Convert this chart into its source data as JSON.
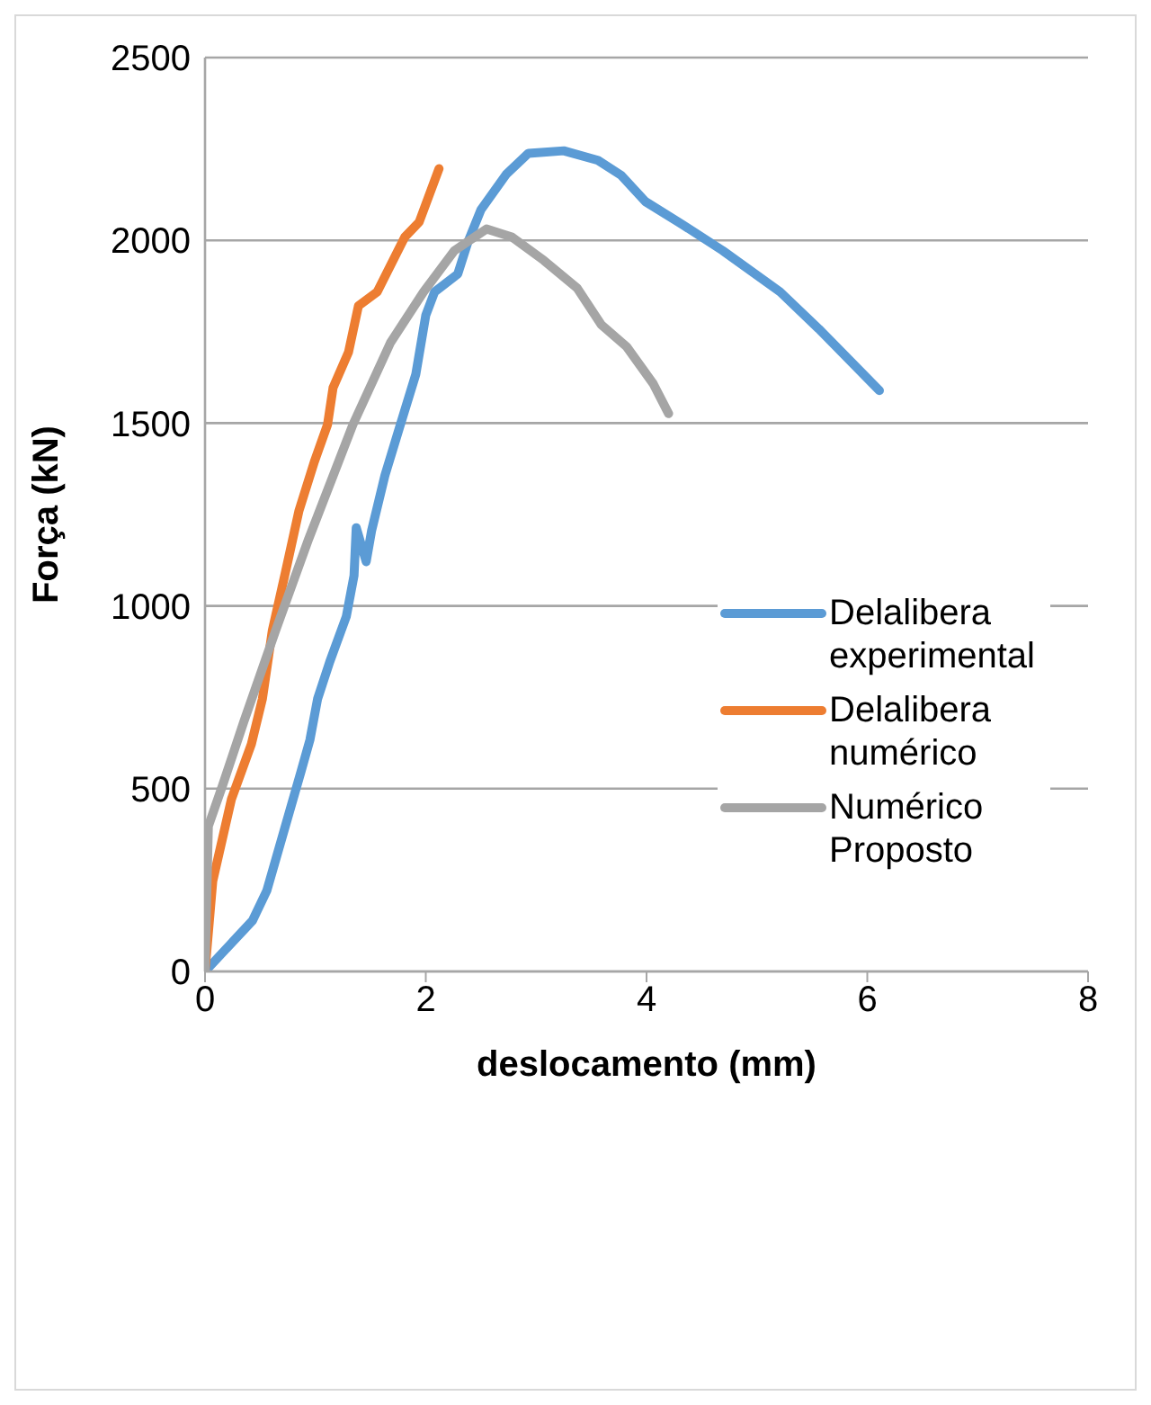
{
  "chart_data": {
    "type": "line",
    "xlabel": "deslocamento (mm)",
    "ylabel": "Força (kN)",
    "xlim": [
      0,
      8
    ],
    "xticks": [
      0,
      2,
      4,
      6,
      8
    ],
    "ylim": [
      0,
      2500
    ],
    "yticks": [
      0,
      500,
      1000,
      1500,
      2000,
      2500
    ],
    "grid": "y",
    "legend": "right",
    "marker": "none",
    "line_style": "solid",
    "series": [
      {
        "name": "Delalibera experimental",
        "color": "#5b9bd5",
        "x": [
          0,
          0.43,
          0.56,
          0.87,
          0.95,
          1.02,
          1.13,
          1.28,
          1.35,
          1.37,
          1.46,
          1.51,
          1.63,
          1.77,
          1.91,
          2.0,
          2.08,
          2.29,
          2.38,
          2.5,
          2.73,
          2.93,
          3.25,
          3.56,
          3.77,
          3.99,
          4.29,
          4.69,
          5.21,
          5.56,
          6.11
        ],
        "values": [
          0,
          139,
          221,
          547,
          633,
          746,
          847,
          971,
          1083,
          1214,
          1121,
          1207,
          1357,
          1496,
          1634,
          1795,
          1859,
          1908,
          1994,
          2084,
          2181,
          2238,
          2245,
          2219,
          2178,
          2106,
          2050,
          1972,
          1859,
          1758,
          1589
        ]
      },
      {
        "name": "Delalibera numérico",
        "color": "#ed7d31",
        "x": [
          0,
          0.07,
          0.24,
          0.42,
          0.52,
          0.61,
          0.73,
          0.85,
          0.99,
          1.11,
          1.16,
          1.3,
          1.39,
          1.56,
          1.81,
          1.94,
          2.12
        ],
        "values": [
          0,
          247,
          472,
          622,
          746,
          933,
          1094,
          1259,
          1394,
          1496,
          1597,
          1694,
          1821,
          1859,
          2009,
          2050,
          2196
        ]
      },
      {
        "name": "Numérico Proposto",
        "color": "#a5a5a5",
        "x": [
          0,
          0.03,
          0.16,
          0.35,
          0.64,
          0.94,
          1.34,
          1.68,
          1.98,
          2.26,
          2.55,
          2.78,
          3.07,
          3.37,
          3.59,
          3.82,
          4.06,
          4.2
        ],
        "values": [
          0,
          397,
          510,
          682,
          933,
          1184,
          1496,
          1720,
          1859,
          1972,
          2031,
          2009,
          1945,
          1870,
          1769,
          1709,
          1608,
          1526
        ]
      }
    ]
  }
}
